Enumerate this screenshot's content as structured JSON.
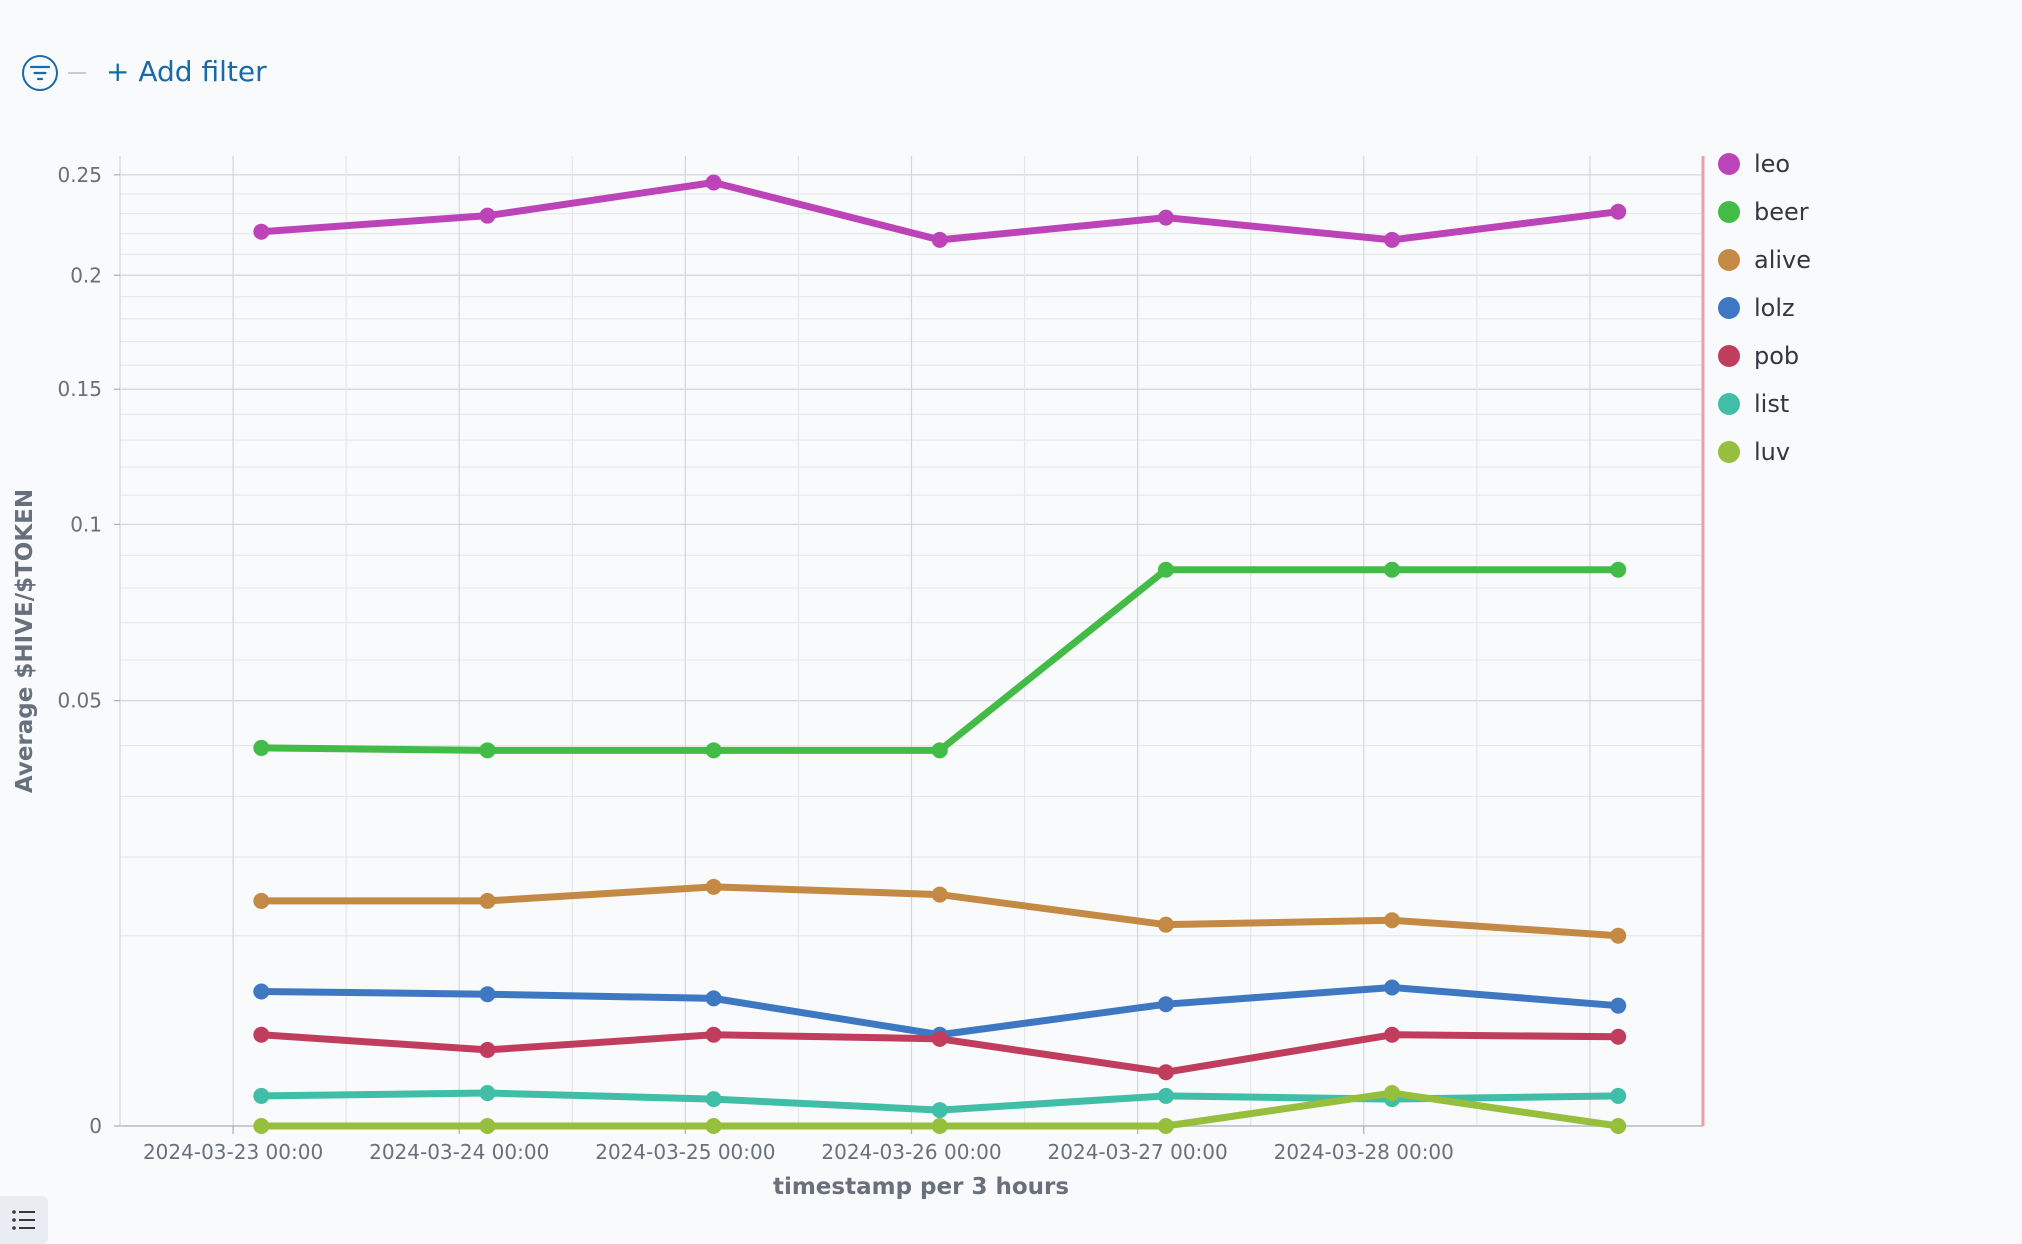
{
  "toolbar": {
    "add_filter_label": "+ Add filter",
    "filter_icon": "filter-icon",
    "legend_toggle_icon": "list-icon"
  },
  "chart_data": {
    "type": "line",
    "title": "",
    "xlabel": "timestamp per 3 hours",
    "ylabel": "Average $HIVE/$TOKEN",
    "y_scale": "sqrt",
    "ylim": [
      0,
      0.26
    ],
    "y_ticks": [
      0,
      0.05,
      0.1,
      0.15,
      0.2,
      0.25
    ],
    "y_tick_labels": [
      "0",
      "0.05",
      "0.1",
      "0.15",
      "0.2",
      "0.25"
    ],
    "x_tick_labels": [
      "2024-03-23 00:00",
      "2024-03-24 00:00",
      "2024-03-25 00:00",
      "2024-03-26 00:00",
      "2024-03-27 00:00",
      "2024-03-28 00:00"
    ],
    "x": [
      "2024-03-23 03:00",
      "2024-03-24 03:00",
      "2024-03-25 03:00",
      "2024-03-26 03:00",
      "2024-03-27 03:00",
      "2024-03-28 03:00",
      "2024-03-29 03:00"
    ],
    "x_range": [
      "2024-03-22 12:00",
      "2024-03-29 12:00"
    ],
    "grid": true,
    "legend_position": "right",
    "series": [
      {
        "name": "leo",
        "color": "#bd44b8",
        "values": [
          0.221,
          0.229,
          0.246,
          0.217,
          0.228,
          0.217,
          0.231
        ]
      },
      {
        "name": "beer",
        "color": "#42bb47",
        "values": [
          0.0395,
          0.039,
          0.039,
          0.039,
          0.0855,
          0.0855,
          0.0855
        ]
      },
      {
        "name": "alive",
        "color": "#c48a45",
        "values": [
          0.014,
          0.014,
          0.0158,
          0.0148,
          0.0112,
          0.0117,
          0.01
        ]
      },
      {
        "name": "lolz",
        "color": "#3f78c2",
        "values": [
          0.005,
          0.0048,
          0.0045,
          0.0023,
          0.0041,
          0.0053,
          0.004
        ]
      },
      {
        "name": "pob",
        "color": "#c13d5e",
        "values": [
          0.0023,
          0.0016,
          0.0023,
          0.0021,
          0.0008,
          0.0023,
          0.0022
        ]
      },
      {
        "name": "list",
        "color": "#40bea8",
        "values": [
          0.00025,
          0.0003,
          0.0002,
          7e-05,
          0.00025,
          0.0002,
          0.00025
        ]
      },
      {
        "name": "luv",
        "color": "#96bf3e",
        "values": [
          0.0,
          0.0,
          0.0,
          0.0,
          0.0,
          0.0003,
          0.0
        ]
      }
    ]
  }
}
